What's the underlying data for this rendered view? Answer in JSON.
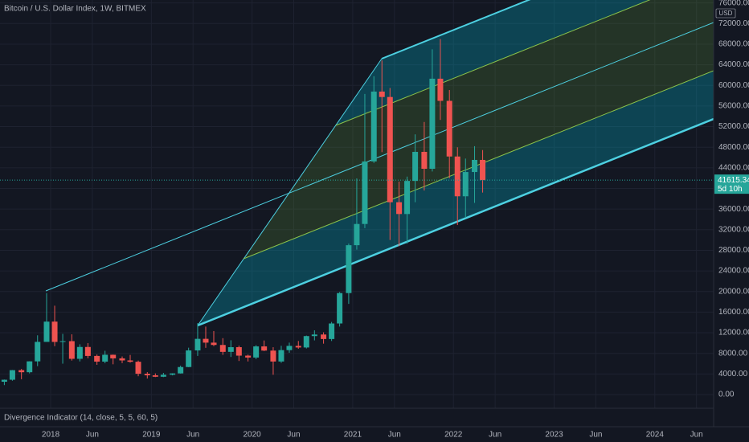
{
  "chart_data": {
    "type": "candlestick",
    "title": "Bitcoin / U.S. Dollar Index, 1W, BITMEX",
    "currency": "USD",
    "indicator": "Divergence Indicator (14, close, 5, 5, 60, 5)",
    "last_price": 41615.34,
    "countdown": "5d 10h",
    "up_color": "#26a69a",
    "down_color": "#ef5350",
    "grid": true,
    "x": [
      2017.54,
      2017.62,
      2017.71,
      2017.79,
      2017.87,
      2017.96,
      2018.04,
      2018.12,
      2018.21,
      2018.29,
      2018.37,
      2018.46,
      2018.54,
      2018.62,
      2018.71,
      2018.79,
      2018.87,
      2018.96,
      2019.04,
      2019.12,
      2019.21,
      2019.29,
      2019.37,
      2019.46,
      2019.54,
      2019.62,
      2019.71,
      2019.79,
      2019.87,
      2019.96,
      2020.04,
      2020.12,
      2020.21,
      2020.29,
      2020.37,
      2020.46,
      2020.54,
      2020.62,
      2020.71,
      2020.79,
      2020.87,
      2020.96,
      2021.04,
      2021.12,
      2021.21,
      2021.29,
      2021.37,
      2021.46,
      2021.54,
      2021.62,
      2021.71,
      2021.79,
      2021.87,
      2021.96,
      2022.04,
      2022.12,
      2022.21,
      2022.29
    ],
    "open": [
      2490,
      2880,
      4740,
      4340,
      6450,
      10230,
      14160,
      10220,
      10370,
      6940,
      9240,
      7500,
      6400,
      7730,
      7030,
      6630,
      6370,
      4040,
      3740,
      3460,
      3850,
      4110,
      5350,
      8570,
      10820,
      10080,
      9630,
      8290,
      9200,
      7560,
      7190,
      9350,
      8540,
      6420,
      8630,
      9450,
      9140,
      11350,
      11660,
      10780,
      13800,
      19700,
      28990,
      33110,
      45240,
      58800,
      57750,
      37330,
      35040,
      41460,
      47100,
      43820,
      61300,
      57000,
      46200,
      38480,
      43190,
      45540
    ],
    "high": [
      2920,
      4770,
      4980,
      6470,
      11500,
      19700,
      17250,
      11790,
      11700,
      9760,
      9990,
      7770,
      8500,
      7760,
      7400,
      7700,
      6600,
      4360,
      4110,
      4210,
      4140,
      5620,
      9100,
      13880,
      13200,
      12330,
      10950,
      10540,
      9500,
      7750,
      9590,
      10500,
      9190,
      9470,
      10080,
      10400,
      11450,
      12470,
      12090,
      14100,
      19900,
      29300,
      41950,
      58350,
      61780,
      64850,
      59500,
      41330,
      42300,
      50500,
      52900,
      67000,
      69000,
      59100,
      47990,
      45800,
      48200,
      47450
    ],
    "low": [
      1840,
      2690,
      2980,
      4110,
      5520,
      10700,
      9400,
      6000,
      6600,
      6430,
      7050,
      5780,
      6080,
      5880,
      6100,
      6200,
      3560,
      3130,
      3400,
      3390,
      3730,
      4080,
      5320,
      7500,
      9070,
      9400,
      7710,
      7300,
      6520,
      6430,
      6870,
      8440,
      3850,
      6150,
      8120,
      8900,
      8950,
      10520,
      9880,
      10400,
      13200,
      17600,
      28130,
      32300,
      44950,
      47050,
      30000,
      28800,
      29300,
      37330,
      39600,
      43300,
      53300,
      42000,
      32900,
      34300,
      37200,
      39200
    ],
    "close": [
      2880,
      4740,
      4340,
      6450,
      10230,
      14160,
      10220,
      10370,
      6940,
      9240,
      7500,
      6400,
      7730,
      7030,
      6630,
      6370,
      4040,
      3740,
      3460,
      3850,
      4110,
      5350,
      8570,
      10820,
      10080,
      9630,
      8290,
      9200,
      7560,
      7190,
      9350,
      8540,
      6420,
      8630,
      9450,
      9140,
      11350,
      11660,
      10780,
      13800,
      19700,
      28990,
      33110,
      45240,
      58800,
      57750,
      37330,
      35040,
      41460,
      47100,
      43820,
      61300,
      57000,
      46200,
      38480,
      43190,
      45540,
      41615.34
    ],
    "xlim": [
      2017.497,
      2024.584
    ],
    "xticks": [
      {
        "value": 2018,
        "label": "2018"
      },
      {
        "value": 2018.414,
        "label": "Jun"
      },
      {
        "value": 2019,
        "label": "2019"
      },
      {
        "value": 2019.414,
        "label": "Jun"
      },
      {
        "value": 2020,
        "label": "2020"
      },
      {
        "value": 2020.414,
        "label": "Jun"
      },
      {
        "value": 2021,
        "label": "2021"
      },
      {
        "value": 2021.414,
        "label": "Jun"
      },
      {
        "value": 2022,
        "label": "2022"
      },
      {
        "value": 2022.414,
        "label": "Jun"
      },
      {
        "value": 2023,
        "label": "2023"
      },
      {
        "value": 2023.414,
        "label": "Jun"
      },
      {
        "value": 2024,
        "label": "2024"
      },
      {
        "value": 2024.414,
        "label": "Jun"
      }
    ],
    "ylim": [
      -2650,
      76570
    ],
    "yticks": [
      {
        "value": 0,
        "label": "0.00"
      },
      {
        "value": 4000,
        "label": "4000.00"
      },
      {
        "value": 8000,
        "label": "8000.00"
      },
      {
        "value": 12000,
        "label": "12000.00"
      },
      {
        "value": 16000,
        "label": "16000.00"
      },
      {
        "value": 20000,
        "label": "20000.00"
      },
      {
        "value": 24000,
        "label": "24000.00"
      },
      {
        "value": 28000,
        "label": "28000.00"
      },
      {
        "value": 32000,
        "label": "32000.00"
      },
      {
        "value": 36000,
        "label": "36000.00"
      },
      {
        "value": 40000,
        "label": "40000.00"
      },
      {
        "value": 44000,
        "label": "44000.00"
      },
      {
        "value": 48000,
        "label": "48000.00"
      },
      {
        "value": 52000,
        "label": "52000.00"
      },
      {
        "value": 56000,
        "label": "56000.00"
      },
      {
        "value": 60000,
        "label": "60000.00"
      },
      {
        "value": 64000,
        "label": "64000.00"
      },
      {
        "value": 68000,
        "label": "68000.00"
      },
      {
        "value": 72000,
        "label": "72000.00"
      },
      {
        "value": 76000,
        "label": "76000.00"
      }
    ]
  }
}
